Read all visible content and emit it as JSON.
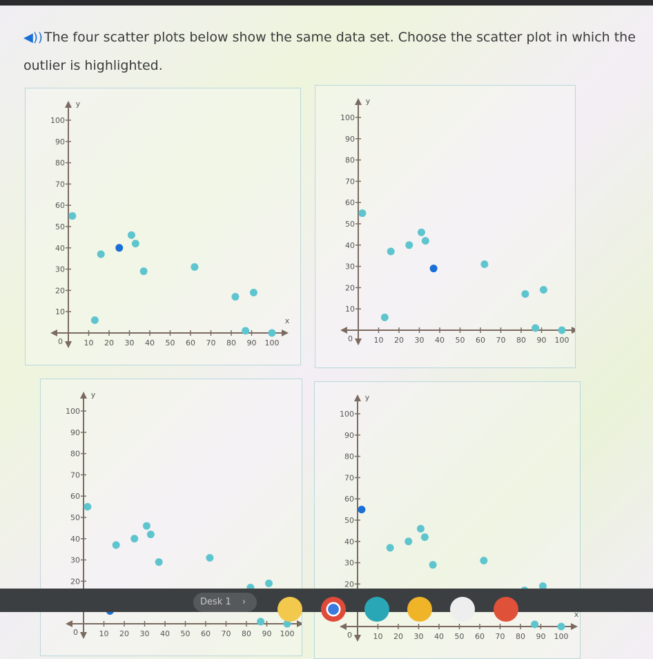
{
  "question": "The four scatter plots below show the same data set. Choose the scatter plot in which the outlier is highlighted.",
  "icons": {
    "audio": "speaker-icon"
  },
  "colors": {
    "point": "#5ec5cf",
    "highlight": "#1a6fd6",
    "axis": "#7a6a60"
  },
  "chart_data": [
    {
      "type": "scatter",
      "xlabel": "x",
      "ylabel": "y",
      "xlim": [
        0,
        100
      ],
      "ylim": [
        0,
        100
      ],
      "xticks": [
        10,
        20,
        30,
        40,
        50,
        60,
        70,
        80,
        90,
        100
      ],
      "yticks": [
        10,
        20,
        30,
        40,
        50,
        60,
        70,
        80,
        90,
        100
      ],
      "origin_label": "0",
      "points": [
        [
          2,
          55
        ],
        [
          13,
          6
        ],
        [
          16,
          37
        ],
        [
          25,
          40
        ],
        [
          31,
          46
        ],
        [
          33,
          42
        ],
        [
          37,
          29
        ],
        [
          62,
          31
        ],
        [
          82,
          17
        ],
        [
          91,
          19
        ],
        [
          87,
          1
        ],
        [
          100,
          0
        ]
      ],
      "highlighted": [
        25,
        40
      ]
    },
    {
      "type": "scatter",
      "xlabel": "x",
      "ylabel": "y",
      "xlim": [
        0,
        100
      ],
      "ylim": [
        0,
        100
      ],
      "xticks": [
        10,
        20,
        30,
        40,
        50,
        60,
        70,
        80,
        90,
        100
      ],
      "yticks": [
        10,
        20,
        30,
        40,
        50,
        60,
        70,
        80,
        90,
        100
      ],
      "origin_label": "0",
      "points": [
        [
          2,
          55
        ],
        [
          13,
          6
        ],
        [
          16,
          37
        ],
        [
          25,
          40
        ],
        [
          31,
          46
        ],
        [
          33,
          42
        ],
        [
          37,
          29
        ],
        [
          62,
          31
        ],
        [
          82,
          17
        ],
        [
          91,
          19
        ],
        [
          87,
          1
        ],
        [
          100,
          0
        ]
      ],
      "highlighted": [
        37,
        29
      ]
    },
    {
      "type": "scatter",
      "xlabel": "x",
      "ylabel": "y",
      "xlim": [
        0,
        100
      ],
      "ylim": [
        0,
        100
      ],
      "xticks": [
        10,
        20,
        30,
        40,
        50,
        60,
        70,
        80,
        90,
        100
      ],
      "yticks": [
        10,
        20,
        30,
        40,
        50,
        60,
        70,
        80,
        90,
        100
      ],
      "origin_label": "0",
      "points": [
        [
          2,
          55
        ],
        [
          13,
          6
        ],
        [
          16,
          37
        ],
        [
          25,
          40
        ],
        [
          31,
          46
        ],
        [
          33,
          42
        ],
        [
          37,
          29
        ],
        [
          62,
          31
        ],
        [
          82,
          17
        ],
        [
          91,
          19
        ],
        [
          87,
          1
        ],
        [
          100,
          0
        ]
      ],
      "highlighted": [
        13,
        6
      ]
    },
    {
      "type": "scatter",
      "xlabel": "x",
      "ylabel": "y",
      "xlim": [
        0,
        100
      ],
      "ylim": [
        0,
        100
      ],
      "xticks": [
        10,
        20,
        30,
        40,
        50,
        60,
        70,
        80,
        90,
        100
      ],
      "yticks": [
        10,
        20,
        30,
        40,
        50,
        60,
        70,
        80,
        90,
        100
      ],
      "origin_label": "0",
      "points": [
        [
          2,
          55
        ],
        [
          13,
          6
        ],
        [
          16,
          37
        ],
        [
          25,
          40
        ],
        [
          31,
          46
        ],
        [
          33,
          42
        ],
        [
          37,
          29
        ],
        [
          62,
          31
        ],
        [
          82,
          17
        ],
        [
          91,
          19
        ],
        [
          87,
          1
        ],
        [
          100,
          0
        ]
      ],
      "highlighted": [
        2,
        55
      ]
    }
  ],
  "taskbar": {
    "desk_label": "Desk 1",
    "desk_chevron": "›",
    "apps": [
      "classroom-icon",
      "chrome-icon",
      "slides-icon",
      "keep-icon",
      "play-store-icon",
      "app-icon"
    ]
  }
}
